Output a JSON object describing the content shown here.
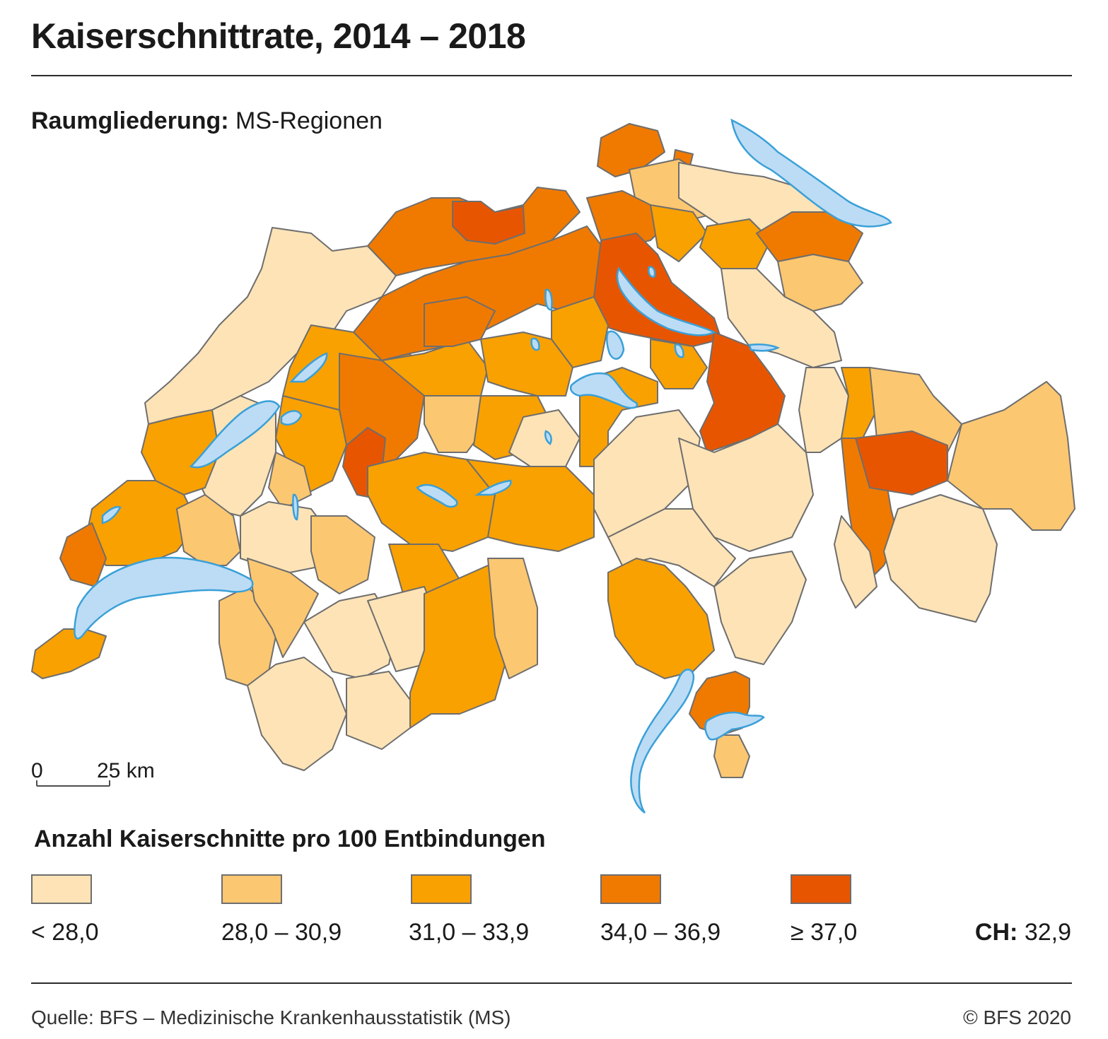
{
  "title": "Kaiserschnittrate, 2014 – 2018",
  "subtitle": {
    "label": "Raumgliederung:",
    "value": "MS-Regionen"
  },
  "legend": {
    "title": "Anzahl Kaiserschnitte pro 100 Entbindungen",
    "classes": [
      {
        "label": "< 28,0",
        "color": "#fde3b6"
      },
      {
        "label": "28,0 – 30,9",
        "color": "#fcc771"
      },
      {
        "label": "31,0 – 33,9",
        "color": "#f9a100"
      },
      {
        "label": "34,0 – 36,9",
        "color": "#f07a00"
      },
      {
        "label": "≥ 37,0",
        "color": "#e85500"
      }
    ]
  },
  "national": {
    "label": "CH:",
    "value": "32,9"
  },
  "scale_bar": {
    "start": "0",
    "end": "25 km"
  },
  "colors": {
    "lake": "#bcdcf5",
    "lake_outline": "#3aa0d8",
    "border": "#6e6e6e"
  },
  "footer": {
    "source": "Quelle: BFS – Medizinische Krankenhausstatistik (MS)",
    "copyright": "© BFS 2020"
  }
}
